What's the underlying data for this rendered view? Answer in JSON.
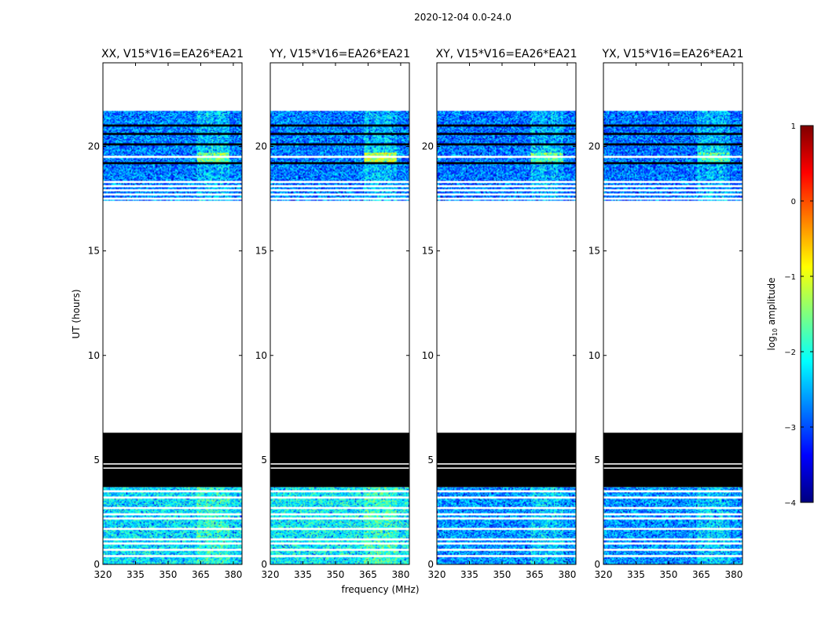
{
  "figure": {
    "suptitle": "2020-12-04 0.0-24.0"
  },
  "chart_data": {
    "type": "heatmap",
    "ylabel": "UT (hours)",
    "xlabel": "frequency (MHz)",
    "xlim": [
      320,
      384
    ],
    "ylim": [
      0,
      24
    ],
    "xticks": [
      320,
      335,
      350,
      365,
      380
    ],
    "yticks": [
      0,
      5,
      10,
      15,
      20
    ],
    "colorbar": {
      "label": "log10 amplitude",
      "range": [
        -4,
        1
      ],
      "ticks": [
        1,
        0,
        -1,
        -2,
        -3,
        -4
      ],
      "tick_labels": [
        "1",
        "0",
        "−1",
        "−2",
        "−3",
        "−4"
      ],
      "colormap": "jet",
      "colors": [
        "#00007f",
        "#0000ff",
        "#007fff",
        "#00ffff",
        "#7fff7f",
        "#ffff00",
        "#ff7f00",
        "#ff0000",
        "#7f0000"
      ]
    },
    "panels": [
      {
        "title": "XX, V15*V16=EA26*EA21",
        "polarization": "XX",
        "base_level": -2.7,
        "rfi_level": -1.6,
        "early_level": -2.2
      },
      {
        "title": "YY, V15*V16=EA26*EA21",
        "polarization": "YY",
        "base_level": -2.7,
        "rfi_level": -1.2,
        "early_level": -2.1
      },
      {
        "title": "XY, V15*V16=EA26*EA21",
        "polarization": "XY",
        "base_level": -2.75,
        "rfi_level": -1.7,
        "early_level": -2.6
      },
      {
        "title": "YX, V15*V16=EA26*EA21",
        "polarization": "YX",
        "base_level": -2.75,
        "rfi_level": -1.8,
        "early_level": -2.6
      }
    ],
    "data_blocks": [
      {
        "start": 0.0,
        "end": 3.7,
        "kind": "data"
      },
      {
        "start": 3.7,
        "end": 6.3,
        "kind": "flagged_black"
      },
      {
        "start": 6.3,
        "end": 17.4,
        "kind": "no_data"
      },
      {
        "start": 17.4,
        "end": 21.7,
        "kind": "data"
      },
      {
        "start": 21.7,
        "end": 24.0,
        "kind": "no_data"
      }
    ],
    "gap_lines_hours": [
      0.4,
      0.7,
      1.0,
      1.2,
      1.7,
      2.2,
      2.4,
      2.7,
      3.2,
      3.5,
      4.6,
      4.8,
      17.5,
      17.7,
      17.9,
      18.1,
      18.3,
      19.5
    ],
    "flag_lines_hours": [
      19.2,
      20.1,
      20.6,
      21.0
    ],
    "rfi_band_mhz": [
      363,
      378
    ]
  }
}
